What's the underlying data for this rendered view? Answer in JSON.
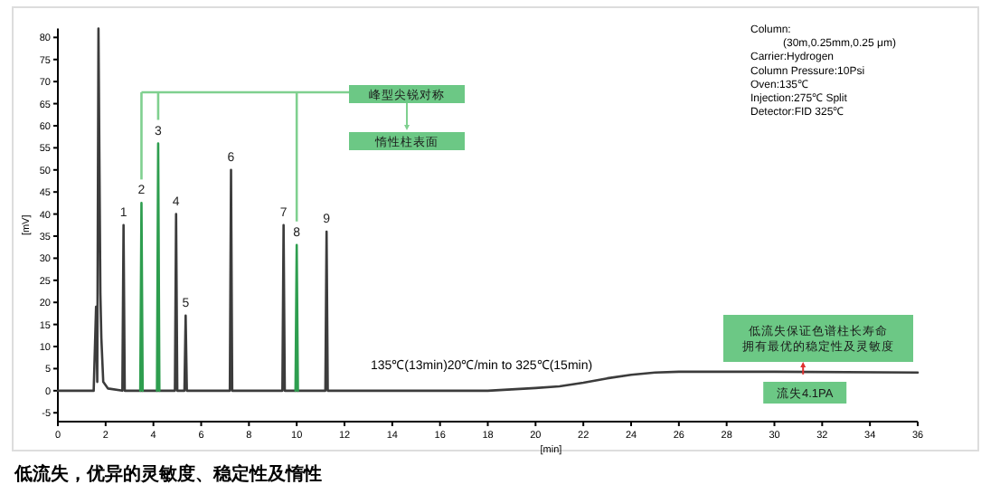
{
  "chart_data": {
    "type": "line",
    "title": "低流失，优异的灵敏度、稳定性及惰性",
    "xlabel": "[min]",
    "ylabel": "[mV]",
    "xlim": [
      0,
      36
    ],
    "ylim": [
      -7,
      82
    ],
    "xticks": [
      0,
      2,
      4,
      6,
      8,
      10,
      12,
      14,
      16,
      18,
      20,
      22,
      24,
      26,
      28,
      30,
      32,
      34,
      36
    ],
    "yticks": [
      -5,
      0,
      5,
      10,
      15,
      20,
      25,
      30,
      35,
      40,
      45,
      50,
      55,
      60,
      65,
      70,
      75,
      80
    ],
    "grid": false,
    "marker": "none",
    "line_style": "solid",
    "series": [
      {
        "color": "#3c3c3c",
        "x": [
          0,
          1.5,
          1.6,
          1.65,
          1.7,
          1.78,
          1.82,
          1.9,
          2.1,
          2.7,
          2.75,
          2.8,
          4.9,
          4.95,
          5.0,
          5.3,
          5.35,
          5.4,
          7.2,
          7.25,
          7.3,
          9.4,
          9.45,
          9.5,
          11.2,
          11.25,
          11.3,
          18,
          19,
          20,
          21,
          22,
          23,
          24,
          25,
          26,
          30,
          36
        ],
        "values": [
          0,
          0,
          19,
          2,
          82,
          22,
          12,
          2,
          0.5,
          0,
          37.5,
          0,
          0,
          40,
          0,
          0,
          17,
          0,
          0,
          50,
          0,
          0,
          37.5,
          0,
          0,
          36,
          0,
          0,
          0.3,
          0.6,
          1,
          1.8,
          2.8,
          3.6,
          4.1,
          4.3,
          4.3,
          4.1
        ]
      },
      {
        "color": "#2e9e4f",
        "x": [
          3.45,
          3.5,
          3.55,
          3.8,
          4.15,
          4.2,
          4.25,
          7,
          9.95,
          10.0,
          10.05
        ],
        "values": [
          0,
          42.5,
          0,
          null,
          0,
          56,
          0,
          null,
          0,
          33,
          0
        ]
      }
    ],
    "annotations": [
      {
        "text": "1",
        "x": 2.75,
        "y": 37.5
      },
      {
        "text": "2",
        "x": 3.5,
        "y": 42.5
      },
      {
        "text": "3",
        "x": 4.2,
        "y": 56
      },
      {
        "text": "4",
        "x": 4.95,
        "y": 40
      },
      {
        "text": "5",
        "x": 5.35,
        "y": 17
      },
      {
        "text": "6",
        "x": 7.25,
        "y": 50
      },
      {
        "text": "7",
        "x": 9.45,
        "y": 37.5
      },
      {
        "text": "8",
        "x": 10.0,
        "y": 33
      },
      {
        "text": "9",
        "x": 11.25,
        "y": 36
      },
      "峰型尖锐对称",
      "惰性柱表面",
      "低流失保证色谱柱长寿命",
      "拥有最优的稳定性及灵敏度",
      {
        "text": "流失4.1PA",
        "x": 31.2,
        "y": 4.1
      },
      "135℃(13min)20℃/min to 325℃(15min)",
      "Column:",
      "(30m,0.25mm,0.25 μm)",
      "Carrier:Hydrogen",
      "Column Pressure:10Psi",
      "Oven:135℃",
      "Injection:275℃ Split",
      "Detector:FID 325℃"
    ]
  }
}
